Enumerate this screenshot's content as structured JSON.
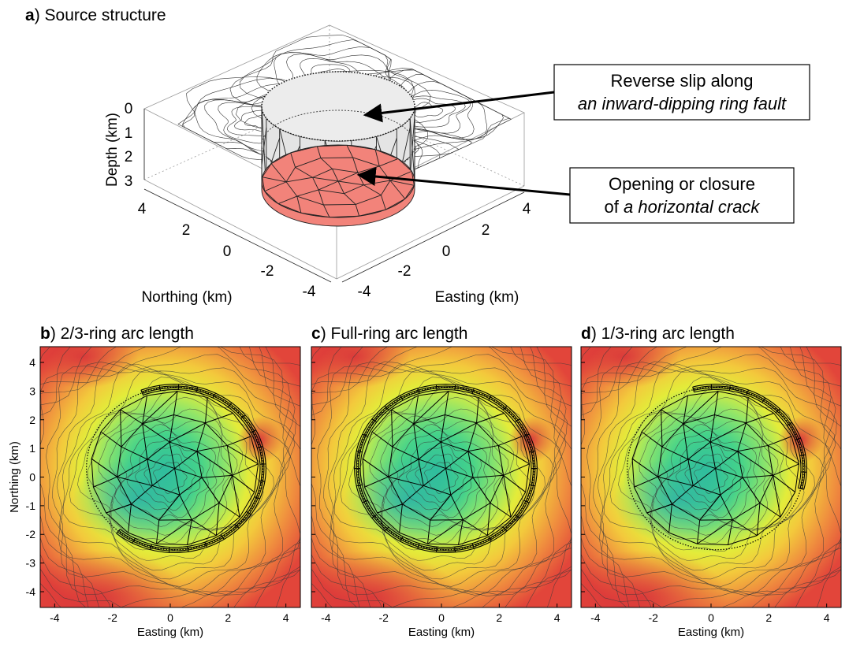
{
  "panel_a": {
    "letter": "a",
    "title": ") Source structure",
    "depth_label": "Depth (km)",
    "depth_ticks": [
      "0",
      "1",
      "2",
      "3"
    ],
    "northing_label": "Northing (km)",
    "northing_ticks": [
      "4",
      "2",
      "0",
      "-2",
      "-4"
    ],
    "easting_label": "Easting (km)",
    "easting_ticks": [
      "-4",
      "-2",
      "0",
      "2",
      "4"
    ],
    "callout_ring": {
      "line1": "Reverse slip along",
      "line2": "an inward-dipping ring fault"
    },
    "callout_crack": {
      "line1": "Opening or closure",
      "line2_prefix": "of ",
      "line2_italic": "a horizontal crack"
    },
    "colors": {
      "crack_fill": "#f2837a",
      "fault_fill": "#e4e4e4"
    }
  },
  "maps": [
    {
      "id": "b",
      "letter": "b",
      "title": ") 2/3-ring arc length",
      "ring": "2/3"
    },
    {
      "id": "c",
      "letter": "c",
      "title": ") Full-ring arc length",
      "ring": "full"
    },
    {
      "id": "d",
      "letter": "d",
      "title": ") 1/3-ring arc length",
      "ring": "1/3"
    }
  ],
  "map_axes": {
    "xlabel": "Easting (km)",
    "ylabel": "Northing (km)",
    "xticks": [
      "-4",
      "-2",
      "0",
      "2",
      "4"
    ],
    "yticks": [
      "4",
      "3",
      "2",
      "1",
      "0",
      "-1",
      "-2",
      "-3",
      "-4"
    ]
  },
  "colormap": [
    "#2fbe9c",
    "#45d38a",
    "#8fe56a",
    "#e3ec3a",
    "#f3c93c",
    "#ef8a3e",
    "#e2453a"
  ]
}
